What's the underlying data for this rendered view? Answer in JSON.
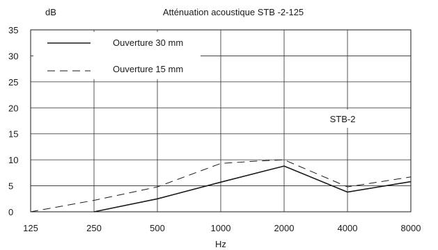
{
  "chart_data": {
    "type": "line",
    "title": "Atténuation acoustique STB -2-125",
    "ylabel": "dB",
    "xlabel": "Hz",
    "x_scale": "log2",
    "x": [
      125,
      250,
      500,
      1000,
      2000,
      4000,
      8000
    ],
    "x_tick_labels": [
      "125",
      "250",
      "500",
      "1000",
      "2000",
      "4000",
      "8000"
    ],
    "ylim": [
      0,
      35
    ],
    "y_ticks": [
      0,
      5,
      10,
      15,
      20,
      25,
      30,
      35
    ],
    "grid": true,
    "legend_position": "top-left",
    "annotation": "STB-2",
    "series": [
      {
        "name": "Ouverture 30 mm",
        "style": "solid",
        "color": "#1a1a1a",
        "x": [
          250,
          500,
          1000,
          2000,
          4000,
          8000
        ],
        "y": [
          0,
          2.5,
          5.7,
          8.8,
          3.8,
          5.8
        ]
      },
      {
        "name": "Ouverture 15 mm",
        "style": "dashed",
        "color": "#1a1a1a",
        "x": [
          125,
          250,
          500,
          1000,
          1400,
          2000,
          4000,
          8000
        ],
        "y": [
          0,
          2.2,
          4.8,
          9.3,
          9.7,
          10.0,
          4.8,
          6.7
        ]
      }
    ]
  }
}
